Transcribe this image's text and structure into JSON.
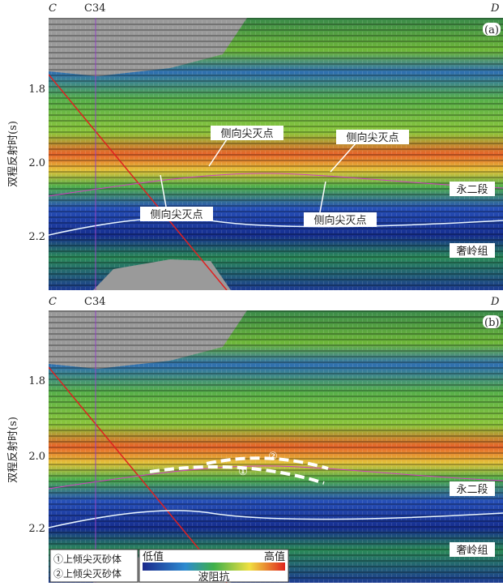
{
  "y_axis_label": "双程反射时(s)",
  "panels": [
    {
      "label": "(a)",
      "left": "C",
      "well": "C34",
      "right": "D",
      "yticks": [
        "1.8",
        "2.0",
        "2.2"
      ],
      "annotations": [
        "侧向尖灭点",
        "侧向尖灭点",
        "侧向尖灭点",
        "侧向尖灭点"
      ],
      "formations": [
        "永二段",
        "奢岭组"
      ]
    },
    {
      "label": "(b)",
      "left": "C",
      "well": "C34",
      "right": "D",
      "yticks": [
        "1.8",
        "2.0",
        "2.2"
      ],
      "sand_markers": [
        "①",
        "②"
      ],
      "formations": [
        "永二段",
        "奢岭组"
      ],
      "legend": {
        "items": [
          "①上倾尖灭砂体",
          "②上倾尖灭砂体"
        ],
        "low": "低值",
        "high": "高值",
        "title": "波阻抗"
      }
    }
  ]
}
